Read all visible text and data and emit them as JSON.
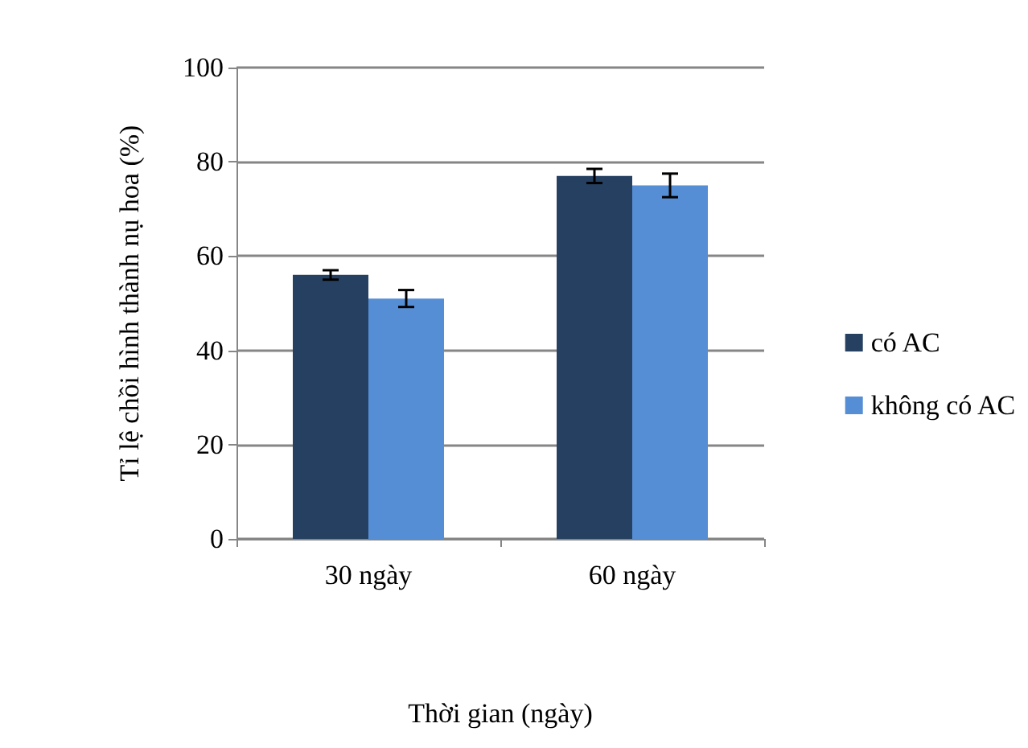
{
  "chart_data": {
    "type": "bar",
    "xlabel": "Thời gian (ngày)",
    "ylabel": "Tỉ lệ chồi hình thành nụ hoa (%)",
    "categories": [
      "30 ngày",
      "60 ngày"
    ],
    "series": [
      {
        "name": "có AC",
        "color": "#264061",
        "values": [
          56,
          77
        ],
        "errors": [
          1,
          1.5
        ]
      },
      {
        "name": "không có AC",
        "color": "#558ed5",
        "values": [
          51,
          75
        ],
        "errors": [
          1.8,
          2.5
        ]
      }
    ],
    "ylim": [
      0,
      100
    ],
    "yticks": [
      0,
      20,
      40,
      60,
      80,
      100
    ],
    "grid": "y",
    "legend": "right"
  }
}
